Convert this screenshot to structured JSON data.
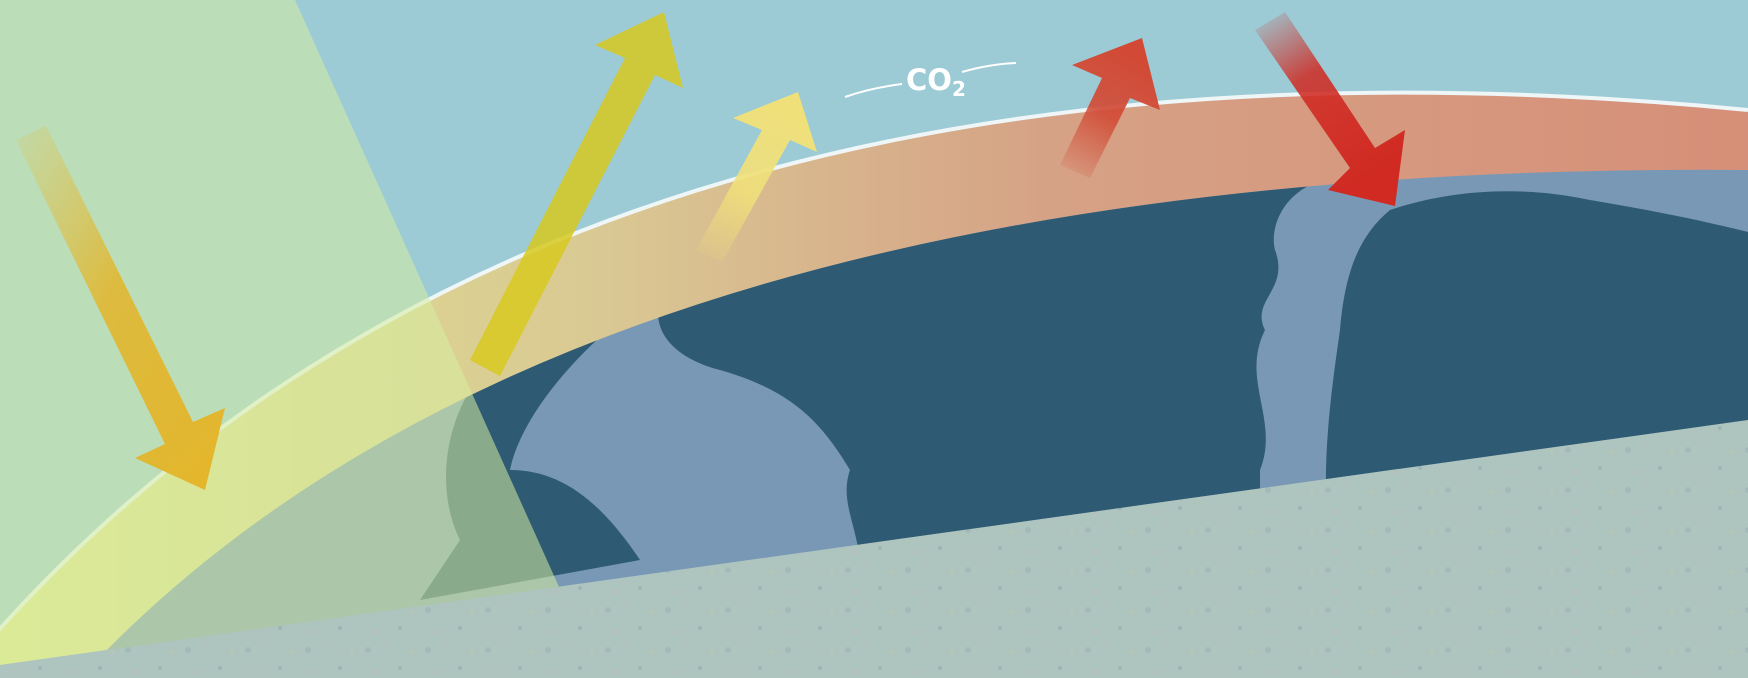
{
  "labels": {
    "gas_main": "CO",
    "gas_subscript": "2"
  },
  "colors": {
    "sky": "#9ccbd6",
    "sunlight_beam": "#d6ec9e",
    "atmosphere_warm": "#d68f78",
    "atmosphere_cool": "#d9de8a",
    "ocean": "#7898b5",
    "land": "#2e5a73",
    "incoming_sunlight_arrow": "#e3b52a",
    "reflected_sunlight_arrow": "#d7c91e",
    "absorbed_arrow": "#f0e07a",
    "infrared_up_arrow": "#d24a35",
    "infrared_down_arrow": "#d02a22",
    "ground_photo": "#a9c2bd"
  },
  "icons": [
    "incoming-sunlight-arrow",
    "reflected-sunlight-arrow",
    "sunlight-to-atmosphere-arrow",
    "infrared-escape-arrow",
    "infrared-back-radiation-arrow"
  ]
}
